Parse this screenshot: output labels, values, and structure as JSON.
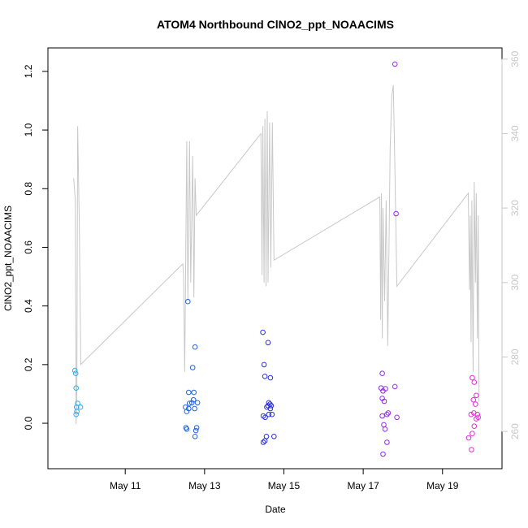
{
  "chart_data": {
    "type": "scatter",
    "title": "ATOM4 Northbound ClNO2_ppt_NOAACIMS",
    "xlabel": "Date",
    "ylabel": "ClNO2_ppt_NOAACIMS",
    "x_unit": "days in May",
    "xlim": [
      9.05,
      20.5
    ],
    "ylim": [
      -0.155,
      1.28
    ],
    "y2lim": [
      250,
      363
    ],
    "x_ticks": [
      {
        "value": 11,
        "label": "May 11"
      },
      {
        "value": 13,
        "label": "May 13"
      },
      {
        "value": 15,
        "label": "May 15"
      },
      {
        "value": 17,
        "label": "May 17"
      },
      {
        "value": 19,
        "label": "May 19"
      }
    ],
    "y_ticks": [
      0.0,
      0.2,
      0.4,
      0.6,
      0.8,
      1.0,
      1.2
    ],
    "y_tick_labels": [
      "0.0",
      "0.2",
      "0.4",
      "0.6",
      "0.8",
      "1.0",
      "1.2"
    ],
    "y2_ticks": [
      260,
      280,
      300,
      320,
      340,
      360
    ],
    "y2_tick_labels": [
      "260",
      "280",
      "300",
      "320",
      "340",
      "360"
    ],
    "grid": false,
    "colors": {
      "line": "#c8c8c8",
      "right_axis": "#c8c8c8",
      "point_gradient": [
        "#2fb0ee",
        "#1f6ee0",
        "#2a2ad8",
        "#8a2be2",
        "#e62ed6"
      ]
    },
    "series": [
      {
        "type": "scatter",
        "points": [
          {
            "x": 9.73,
            "y": 0.18
          },
          {
            "x": 9.75,
            "y": 0.17
          },
          {
            "x": 9.76,
            "y": 0.12
          },
          {
            "x": 9.77,
            "y": 0.055
          },
          {
            "x": 9.8,
            "y": 0.068
          },
          {
            "x": 9.78,
            "y": 0.04
          },
          {
            "x": 9.76,
            "y": 0.03
          },
          {
            "x": 9.87,
            "y": 0.055
          },
          {
            "x": 12.58,
            "y": 0.415
          },
          {
            "x": 12.76,
            "y": 0.26
          },
          {
            "x": 12.7,
            "y": 0.19
          },
          {
            "x": 12.6,
            "y": 0.105
          },
          {
            "x": 12.73,
            "y": 0.105
          },
          {
            "x": 12.72,
            "y": 0.08
          },
          {
            "x": 12.62,
            "y": 0.068
          },
          {
            "x": 12.68,
            "y": 0.07
          },
          {
            "x": 12.82,
            "y": 0.07
          },
          {
            "x": 12.52,
            "y": 0.055
          },
          {
            "x": 12.6,
            "y": 0.05
          },
          {
            "x": 12.75,
            "y": 0.05
          },
          {
            "x": 12.55,
            "y": 0.04
          },
          {
            "x": 12.53,
            "y": -0.015
          },
          {
            "x": 12.55,
            "y": -0.02
          },
          {
            "x": 12.8,
            "y": -0.015
          },
          {
            "x": 12.78,
            "y": -0.025
          },
          {
            "x": 12.76,
            "y": -0.045
          },
          {
            "x": 14.47,
            "y": 0.31
          },
          {
            "x": 14.6,
            "y": 0.275
          },
          {
            "x": 14.5,
            "y": 0.2
          },
          {
            "x": 14.52,
            "y": 0.16
          },
          {
            "x": 14.66,
            "y": 0.155
          },
          {
            "x": 14.62,
            "y": 0.07
          },
          {
            "x": 14.65,
            "y": 0.065
          },
          {
            "x": 14.6,
            "y": 0.06
          },
          {
            "x": 14.57,
            "y": 0.055
          },
          {
            "x": 14.68,
            "y": 0.06
          },
          {
            "x": 14.66,
            "y": 0.05
          },
          {
            "x": 14.62,
            "y": 0.03
          },
          {
            "x": 14.48,
            "y": 0.025
          },
          {
            "x": 14.7,
            "y": 0.03
          },
          {
            "x": 14.53,
            "y": 0.02
          },
          {
            "x": 14.52,
            "y": -0.06
          },
          {
            "x": 14.56,
            "y": -0.045
          },
          {
            "x": 14.48,
            "y": -0.065
          },
          {
            "x": 14.75,
            "y": -0.045
          },
          {
            "x": 17.8,
            "y": 1.225
          },
          {
            "x": 17.83,
            "y": 0.715
          },
          {
            "x": 17.48,
            "y": 0.17
          },
          {
            "x": 17.8,
            "y": 0.125
          },
          {
            "x": 17.45,
            "y": 0.12
          },
          {
            "x": 17.5,
            "y": 0.11
          },
          {
            "x": 17.56,
            "y": 0.118
          },
          {
            "x": 17.48,
            "y": 0.085
          },
          {
            "x": 17.53,
            "y": 0.075
          },
          {
            "x": 17.48,
            "y": 0.025
          },
          {
            "x": 17.6,
            "y": 0.03
          },
          {
            "x": 17.63,
            "y": 0.035
          },
          {
            "x": 17.85,
            "y": 0.02
          },
          {
            "x": 17.52,
            "y": -0.005
          },
          {
            "x": 17.55,
            "y": -0.02
          },
          {
            "x": 17.6,
            "y": -0.065
          },
          {
            "x": 17.5,
            "y": -0.105
          },
          {
            "x": 19.75,
            "y": 0.155
          },
          {
            "x": 19.8,
            "y": 0.14
          },
          {
            "x": 19.78,
            "y": 0.08
          },
          {
            "x": 19.85,
            "y": 0.095
          },
          {
            "x": 19.83,
            "y": 0.065
          },
          {
            "x": 19.72,
            "y": 0.03
          },
          {
            "x": 19.79,
            "y": 0.035
          },
          {
            "x": 19.88,
            "y": 0.03
          },
          {
            "x": 19.9,
            "y": 0.02
          },
          {
            "x": 19.85,
            "y": 0.015
          },
          {
            "x": 19.8,
            "y": -0.01
          },
          {
            "x": 19.66,
            "y": -0.05
          },
          {
            "x": 19.75,
            "y": -0.035
          },
          {
            "x": 19.73,
            "y": -0.09
          }
        ]
      },
      {
        "type": "line",
        "axis": "right",
        "points": [
          {
            "x": 9.7,
            "y": 328
          },
          {
            "x": 9.74,
            "y": 322
          },
          {
            "x": 9.76,
            "y": 262
          },
          {
            "x": 9.78,
            "y": 272
          },
          {
            "x": 9.8,
            "y": 342
          },
          {
            "x": 9.84,
            "y": 316
          },
          {
            "x": 9.88,
            "y": 278
          },
          {
            "x": 12.45,
            "y": 305
          },
          {
            "x": 12.47,
            "y": 302
          },
          {
            "x": 12.5,
            "y": 276
          },
          {
            "x": 12.52,
            "y": 300
          },
          {
            "x": 12.55,
            "y": 338
          },
          {
            "x": 12.58,
            "y": 295
          },
          {
            "x": 12.62,
            "y": 338
          },
          {
            "x": 12.65,
            "y": 300
          },
          {
            "x": 12.7,
            "y": 334
          },
          {
            "x": 12.73,
            "y": 296
          },
          {
            "x": 12.76,
            "y": 328
          },
          {
            "x": 12.79,
            "y": 318
          },
          {
            "x": 14.42,
            "y": 340
          },
          {
            "x": 14.45,
            "y": 302
          },
          {
            "x": 14.47,
            "y": 342
          },
          {
            "x": 14.5,
            "y": 300
          },
          {
            "x": 14.52,
            "y": 344
          },
          {
            "x": 14.55,
            "y": 299
          },
          {
            "x": 14.58,
            "y": 346
          },
          {
            "x": 14.6,
            "y": 300
          },
          {
            "x": 14.64,
            "y": 343
          },
          {
            "x": 14.67,
            "y": 304
          },
          {
            "x": 14.71,
            "y": 343
          },
          {
            "x": 14.75,
            "y": 306
          },
          {
            "x": 17.42,
            "y": 323
          },
          {
            "x": 17.44,
            "y": 290
          },
          {
            "x": 17.46,
            "y": 324
          },
          {
            "x": 17.48,
            "y": 285
          },
          {
            "x": 17.5,
            "y": 320
          },
          {
            "x": 17.54,
            "y": 295
          },
          {
            "x": 17.58,
            "y": 322
          },
          {
            "x": 17.62,
            "y": 283
          },
          {
            "x": 17.68,
            "y": 336
          },
          {
            "x": 17.72,
            "y": 350
          },
          {
            "x": 17.76,
            "y": 353
          },
          {
            "x": 17.8,
            "y": 330
          },
          {
            "x": 17.85,
            "y": 299
          },
          {
            "x": 19.65,
            "y": 324
          },
          {
            "x": 19.68,
            "y": 298
          },
          {
            "x": 19.7,
            "y": 318
          },
          {
            "x": 19.72,
            "y": 284
          },
          {
            "x": 19.74,
            "y": 322
          },
          {
            "x": 19.77,
            "y": 276
          },
          {
            "x": 19.8,
            "y": 327
          },
          {
            "x": 19.83,
            "y": 300
          },
          {
            "x": 19.85,
            "y": 324
          },
          {
            "x": 19.88,
            "y": 285
          },
          {
            "x": 19.9,
            "y": 318
          },
          {
            "x": 19.92,
            "y": 268
          }
        ]
      }
    ]
  }
}
